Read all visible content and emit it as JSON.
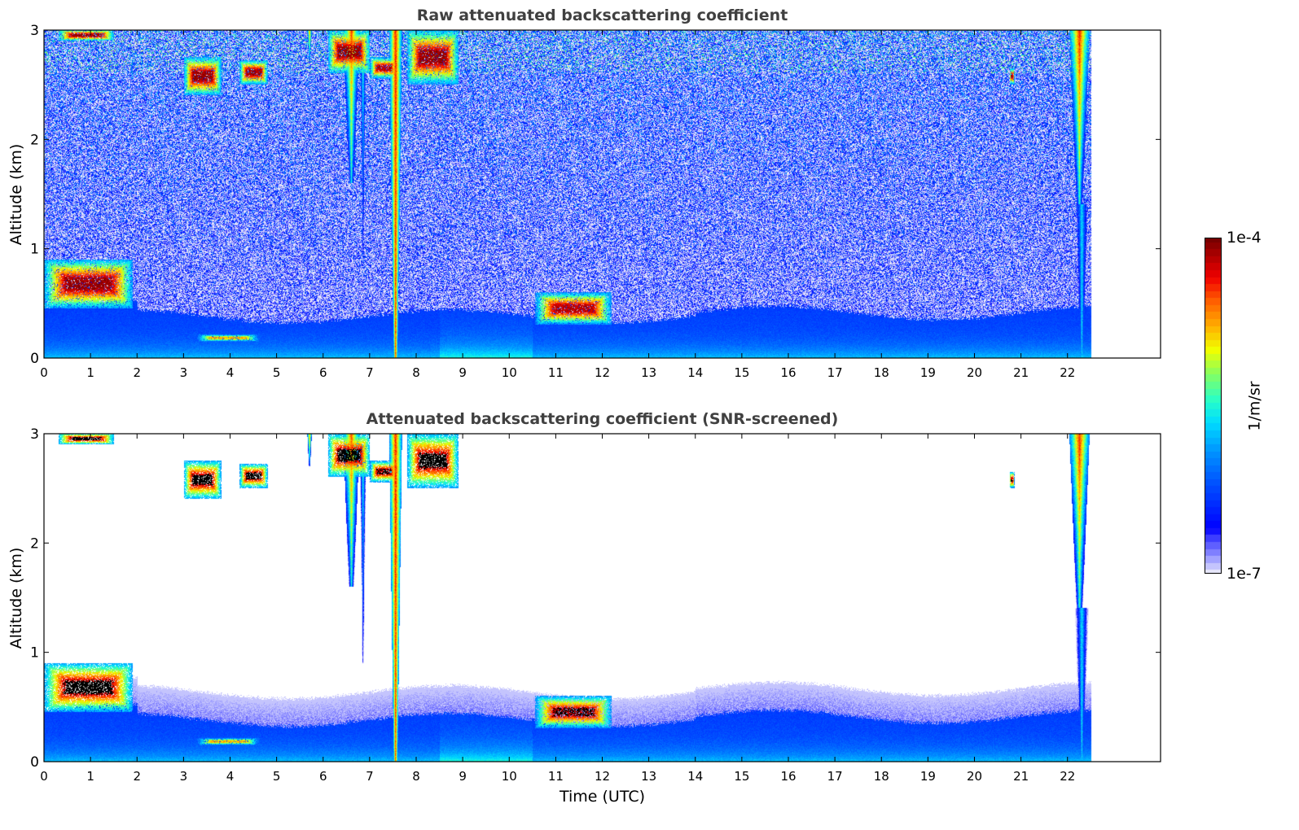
{
  "chart_data": [
    {
      "type": "heatmap",
      "title": "Raw attenuated backscattering coefficient",
      "xlabel": "",
      "ylabel": "Altitude (km)",
      "xlim": [
        0,
        24
      ],
      "ylim": [
        0,
        3
      ],
      "xticks": [
        "0",
        "1",
        "2",
        "3",
        "4",
        "5",
        "6",
        "7",
        "8",
        "9",
        "10",
        "11",
        "12",
        "13",
        "14",
        "15",
        "16",
        "17",
        "18",
        "19",
        "20",
        "21",
        "22"
      ],
      "yticks": [
        "0",
        "1",
        "2",
        "3"
      ],
      "screened": false,
      "data_end_hour": 22.5
    },
    {
      "type": "heatmap",
      "title": "Attenuated backscattering coefficient (SNR-screened)",
      "xlabel": "Time (UTC)",
      "ylabel": "Altitude (km)",
      "xlim": [
        0,
        24
      ],
      "ylim": [
        0,
        3
      ],
      "xticks": [
        "0",
        "1",
        "2",
        "3",
        "4",
        "5",
        "6",
        "7",
        "8",
        "9",
        "10",
        "11",
        "12",
        "13",
        "14",
        "15",
        "16",
        "17",
        "18",
        "19",
        "20",
        "21",
        "22"
      ],
      "yticks": [
        "0",
        "1",
        "2",
        "3"
      ],
      "screened": true,
      "data_end_hour": 22.5
    }
  ],
  "features_log10": {
    "clouds": [
      {
        "t0": 0.0,
        "t1": 1.9,
        "z0": 0.45,
        "z1": 0.9,
        "peak": -4.1
      },
      {
        "t0": 0.3,
        "t1": 1.5,
        "z0": 2.9,
        "z1": 3.0,
        "peak": -4.1
      },
      {
        "t0": 3.0,
        "t1": 3.8,
        "z0": 2.4,
        "z1": 2.75,
        "peak": -4.1
      },
      {
        "t0": 4.2,
        "t1": 4.8,
        "z0": 2.5,
        "z1": 2.72,
        "peak": -4.1
      },
      {
        "t0": 6.1,
        "t1": 7.0,
        "z0": 2.6,
        "z1": 3.0,
        "peak": -4.1
      },
      {
        "t0": 7.0,
        "t1": 7.6,
        "z0": 2.55,
        "z1": 2.75,
        "peak": -4.2
      },
      {
        "t0": 7.8,
        "t1": 8.9,
        "z0": 2.5,
        "z1": 3.0,
        "peak": -4.1
      },
      {
        "t0": 10.55,
        "t1": 12.2,
        "z0": 0.3,
        "z1": 0.6,
        "peak": -4.2
      },
      {
        "t0": 20.75,
        "t1": 20.85,
        "z0": 2.5,
        "z1": 2.65,
        "peak": -4.2
      },
      {
        "t0": 3.2,
        "t1": 4.7,
        "z0": 0.14,
        "z1": 0.22,
        "peak": -4.8
      }
    ],
    "streaks": [
      {
        "t": 6.6,
        "w": 0.18,
        "zbot": 1.6,
        "ztop": 3.0,
        "peak": -4.5
      },
      {
        "t": 6.85,
        "w": 0.07,
        "zbot": 0.9,
        "ztop": 2.9,
        "peak": -5.3
      },
      {
        "t": 7.55,
        "w": 0.14,
        "zbot": 0.0,
        "ztop": 3.0,
        "peak": -4.4
      },
      {
        "t": 5.7,
        "w": 0.05,
        "zbot": 2.7,
        "ztop": 3.0,
        "peak": -4.6
      },
      {
        "t": 22.25,
        "w": 0.22,
        "zbot": 1.4,
        "ztop": 3.0,
        "peak": -4.4
      },
      {
        "t": 22.3,
        "w": 0.15,
        "zbot": 0.0,
        "ztop": 1.4,
        "peak": -5.6
      }
    ]
  },
  "colorbar": {
    "label": "1/m/sr",
    "max_label": "1e-4",
    "min_label": "1e-7",
    "log_min": -7,
    "log_max": -4
  }
}
